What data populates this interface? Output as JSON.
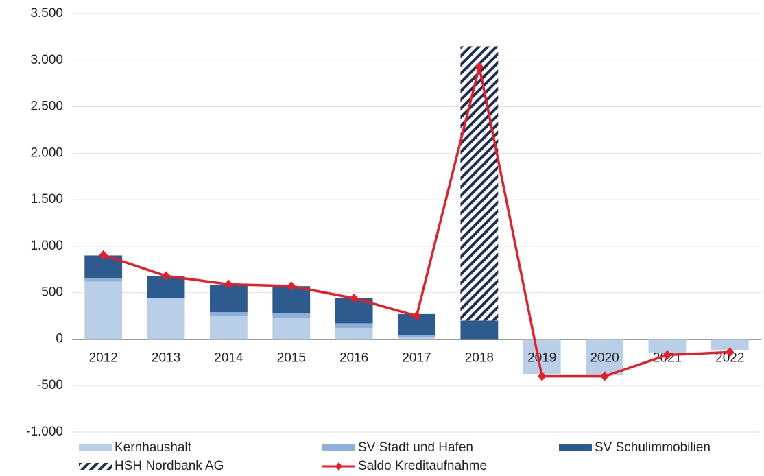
{
  "chart_data": {
    "type": "bar",
    "categories": [
      "2012",
      "2013",
      "2014",
      "2015",
      "2016",
      "2017",
      "2018",
      "2019",
      "2020",
      "2021",
      "2022"
    ],
    "series": [
      {
        "name": "Kernhaushalt",
        "color": "#b9cfe7",
        "values": [
          620,
          440,
          250,
          230,
          120,
          20,
          0,
          -380,
          -390,
          -150,
          -120
        ]
      },
      {
        "name": "SV Stadt und Hafen",
        "color": "#8eb0d8",
        "values": [
          40,
          0,
          40,
          50,
          50,
          20,
          0,
          0,
          0,
          0,
          0
        ]
      },
      {
        "name": "SV Schulimmobilien",
        "color": "#2d5b8e",
        "values": [
          240,
          240,
          290,
          290,
          270,
          230,
          200,
          0,
          0,
          0,
          0
        ]
      },
      {
        "name": "HSH Nordbank AG",
        "color": "#1c2f52",
        "hatch": true,
        "values": [
          0,
          0,
          0,
          0,
          0,
          0,
          2950,
          0,
          0,
          0,
          0
        ]
      },
      {
        "name": "Saldo Kreditaufnahme",
        "color": "#e3202a",
        "type": "line",
        "values": [
          905,
          680,
          590,
          570,
          440,
          250,
          2930,
          -400,
          -400,
          -170,
          -140
        ]
      }
    ],
    "ylim": [
      -1000,
      3500
    ],
    "yticks": [
      {
        "value": -1000,
        "label": "-1.000"
      },
      -500,
      0,
      500,
      {
        "value": 1000,
        "label": "1.000"
      },
      {
        "value": 1500,
        "label": "1.500"
      },
      {
        "value": 2000,
        "label": "2.000"
      },
      {
        "value": 2500,
        "label": "2.500"
      },
      {
        "value": 3000,
        "label": "3.000"
      },
      {
        "value": 3500,
        "label": "3.500"
      }
    ],
    "grid": true
  }
}
